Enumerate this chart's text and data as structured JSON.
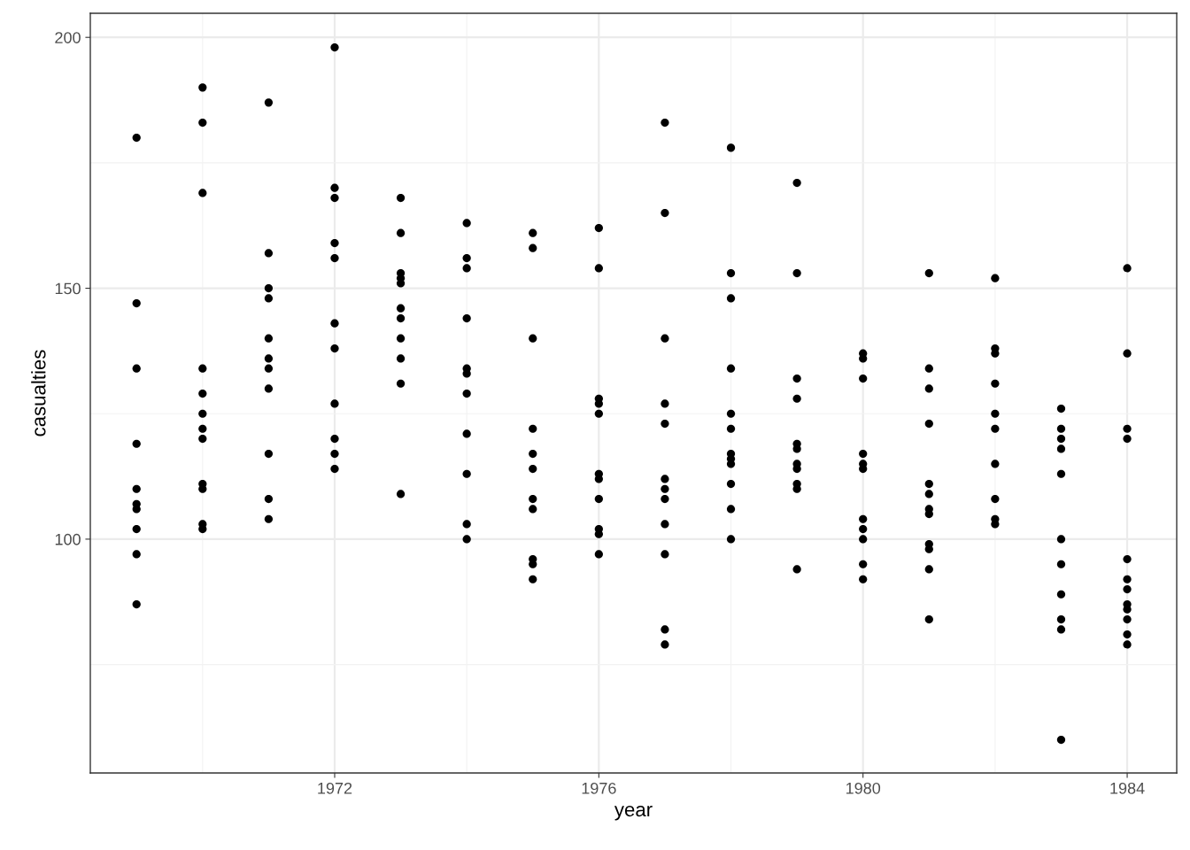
{
  "chart_data": {
    "type": "scatter",
    "xlabel": "year",
    "ylabel": "casualties",
    "x": [
      1969,
      1969,
      1969,
      1969,
      1969,
      1969,
      1969,
      1969,
      1969,
      1969,
      1970,
      1970,
      1970,
      1970,
      1970,
      1970,
      1970,
      1970,
      1970,
      1970,
      1970,
      1970,
      1971,
      1971,
      1971,
      1971,
      1971,
      1971,
      1971,
      1971,
      1971,
      1971,
      1971,
      1972,
      1972,
      1972,
      1972,
      1972,
      1972,
      1972,
      1972,
      1972,
      1972,
      1972,
      1973,
      1973,
      1973,
      1973,
      1973,
      1973,
      1973,
      1973,
      1973,
      1973,
      1973,
      1974,
      1974,
      1974,
      1974,
      1974,
      1974,
      1974,
      1974,
      1974,
      1974,
      1974,
      1975,
      1975,
      1975,
      1975,
      1975,
      1975,
      1975,
      1975,
      1975,
      1975,
      1975,
      1976,
      1976,
      1976,
      1976,
      1976,
      1976,
      1976,
      1976,
      1976,
      1976,
      1976,
      1977,
      1977,
      1977,
      1977,
      1977,
      1977,
      1977,
      1977,
      1977,
      1977,
      1977,
      1977,
      1978,
      1978,
      1978,
      1978,
      1978,
      1978,
      1978,
      1978,
      1978,
      1978,
      1978,
      1978,
      1979,
      1979,
      1979,
      1979,
      1979,
      1979,
      1979,
      1979,
      1979,
      1979,
      1979,
      1980,
      1980,
      1980,
      1980,
      1980,
      1980,
      1980,
      1980,
      1980,
      1980,
      1980,
      1981,
      1981,
      1981,
      1981,
      1981,
      1981,
      1981,
      1981,
      1981,
      1981,
      1981,
      1981,
      1982,
      1982,
      1982,
      1982,
      1982,
      1982,
      1982,
      1982,
      1982,
      1982,
      1983,
      1983,
      1983,
      1983,
      1983,
      1983,
      1983,
      1983,
      1983,
      1983,
      1983,
      1984,
      1984,
      1984,
      1984,
      1984,
      1984,
      1984,
      1984,
      1984,
      1984,
      1984,
      1984
    ],
    "values": [
      180,
      147,
      134,
      119,
      110,
      107,
      106,
      102,
      97,
      87,
      190,
      183,
      169,
      134,
      129,
      125,
      122,
      120,
      111,
      110,
      103,
      102,
      187,
      157,
      150,
      148,
      140,
      136,
      134,
      130,
      117,
      108,
      104,
      198,
      170,
      168,
      159,
      156,
      143,
      138,
      127,
      120,
      117,
      114,
      168,
      161,
      153,
      152,
      151,
      146,
      144,
      140,
      136,
      131,
      109,
      163,
      156,
      154,
      144,
      134,
      133,
      129,
      121,
      113,
      103,
      100,
      161,
      158,
      140,
      122,
      117,
      114,
      108,
      106,
      96,
      95,
      92,
      162,
      154,
      128,
      127,
      125,
      113,
      112,
      108,
      102,
      101,
      97,
      183,
      165,
      140,
      127,
      123,
      112,
      110,
      108,
      103,
      97,
      82,
      79,
      178,
      153,
      148,
      134,
      125,
      122,
      117,
      116,
      115,
      111,
      106,
      100,
      171,
      153,
      132,
      128,
      119,
      118,
      115,
      114,
      111,
      110,
      94,
      137,
      136,
      132,
      117,
      115,
      114,
      104,
      102,
      100,
      95,
      92,
      153,
      134,
      130,
      123,
      111,
      109,
      106,
      105,
      99,
      98,
      94,
      84,
      152,
      138,
      137,
      131,
      125,
      122,
      115,
      108,
      104,
      103,
      126,
      122,
      120,
      118,
      113,
      100,
      95,
      89,
      84,
      82,
      60,
      154,
      137,
      122,
      120,
      96,
      92,
      90,
      87,
      86,
      84,
      81,
      79
    ],
    "color": "#000000",
    "marker": "circle",
    "xlim": [
      1968.3,
      1984.75
    ],
    "xticks": [
      1972,
      1976,
      1980,
      1984
    ],
    "ylim": [
      53.4,
      204.8
    ],
    "yticks": [
      100,
      150,
      200
    ],
    "grid": true
  }
}
